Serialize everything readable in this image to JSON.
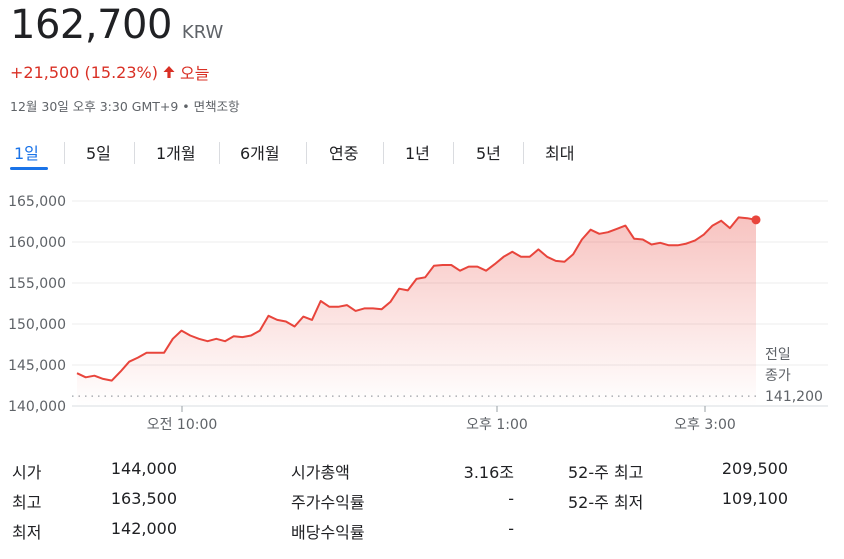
{
  "quote": {
    "price": "162,700",
    "currency": "KRW",
    "change": "+21,500 (15.23%)",
    "period": "오늘",
    "timestamp": "12월 30일 오후 3:30 GMT+9 • 면책조항",
    "up_color": "#d93025"
  },
  "tabs": [
    "1일",
    "5일",
    "1개월",
    "6개월",
    "연중",
    "1년",
    "5년",
    "최대"
  ],
  "active_tab": "1일",
  "chart_data": {
    "type": "area",
    "x_unit": "time (KST)",
    "x_ticks": [
      "오전 10:00",
      "오후 1:00",
      "오후 3:00"
    ],
    "y_ticks": [
      "165,000",
      "160,000",
      "155,000",
      "150,000",
      "145,000",
      "140,000"
    ],
    "ylim": [
      140000,
      165000
    ],
    "previous_close_label": [
      "전일",
      "종가"
    ],
    "previous_close_value": "141,200",
    "previous_close": 141200,
    "line_color": "#e8453c",
    "grid": true,
    "series": [
      {
        "values": [
          144000,
          143500,
          143700,
          143300,
          143100,
          144200,
          145400,
          145900,
          146500,
          146500,
          146500,
          148200,
          149200,
          148600,
          148200,
          147900,
          148200,
          147900,
          148500,
          148400,
          148600,
          149200,
          151000,
          150500,
          150300,
          149700,
          150900,
          150500,
          152800,
          152100,
          152100,
          152300,
          151600,
          151900,
          151900,
          151800,
          152700,
          154300,
          154100,
          155500,
          155700,
          157100,
          157200,
          157200,
          156500,
          157000,
          157000,
          156500,
          157300,
          158200,
          158800,
          158200,
          158200,
          159100,
          158200,
          157700,
          157600,
          158500,
          160300,
          161500,
          161000,
          161200,
          161600,
          162000,
          160400,
          160300,
          159700,
          159900,
          159600,
          159600,
          159800,
          160200,
          160900,
          162000,
          162600,
          161700,
          163000,
          162900,
          162700
        ]
      }
    ]
  },
  "stats": [
    {
      "label": "시가",
      "value": "144,000"
    },
    {
      "label": "최고",
      "value": "163,500"
    },
    {
      "label": "최저",
      "value": "142,000"
    },
    {
      "label": "시가총액",
      "value": "3.16조"
    },
    {
      "label": "주가수익률",
      "value": "-"
    },
    {
      "label": "배당수익률",
      "value": "-"
    },
    {
      "label": "52-주 최고",
      "value": "209,500"
    },
    {
      "label": "52-주 최저",
      "value": "109,100"
    }
  ]
}
